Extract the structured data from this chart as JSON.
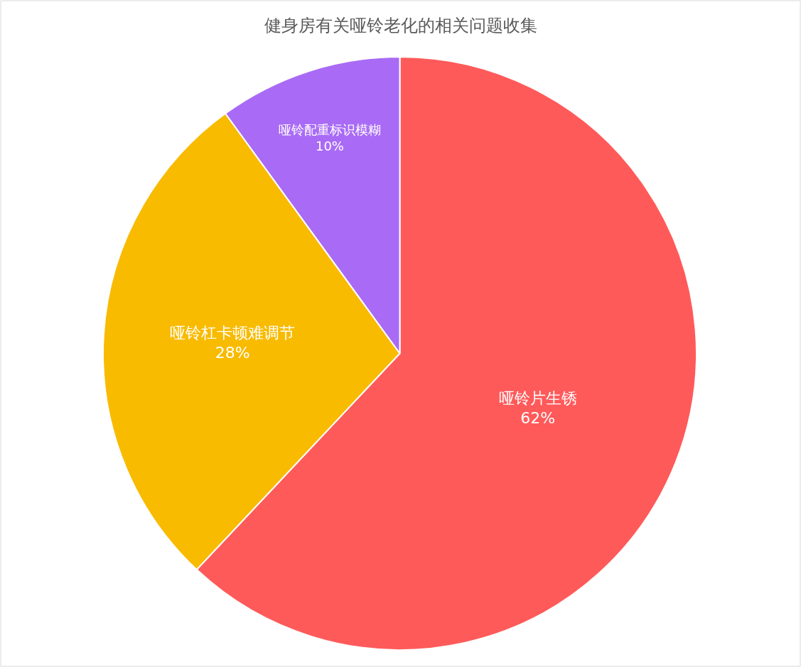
{
  "chart_data": {
    "type": "pie",
    "title": "健身房有关哑铃老化的相关问题收集",
    "categories": [
      "哑铃片生锈",
      "哑铃杠卡顿难调节",
      "哑铃配重标识模糊"
    ],
    "values": [
      62,
      28,
      10
    ],
    "colors": [
      "#ff5a5a",
      "#f8bb00",
      "#a96bf5"
    ],
    "value_labels": [
      "62%",
      "28%",
      "10%"
    ]
  }
}
